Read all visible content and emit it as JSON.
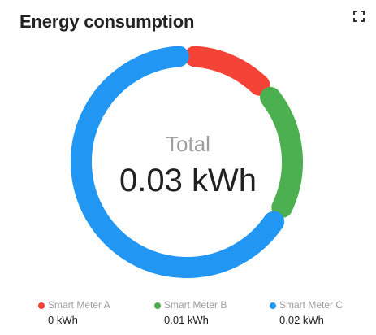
{
  "widget": {
    "title": "Energy consumption",
    "expand_icon": "fullscreen-icon"
  },
  "center": {
    "label": "Total",
    "value": "0.03 kWh"
  },
  "legend": [
    {
      "name": "Smart Meter A",
      "value": "0 kWh",
      "color": "#f44336"
    },
    {
      "name": "Smart Meter B",
      "value": "0.01 kWh",
      "color": "#4caf50"
    },
    {
      "name": "Smart Meter C",
      "value": "0.02 kWh",
      "color": "#2196f3"
    }
  ],
  "chart_data": {
    "type": "pie",
    "series": [
      {
        "name": "Smart Meter A",
        "value": 0.004
      },
      {
        "name": "Smart Meter B",
        "value": 0.006
      },
      {
        "name": "Smart Meter C",
        "value": 0.02
      }
    ]
  }
}
